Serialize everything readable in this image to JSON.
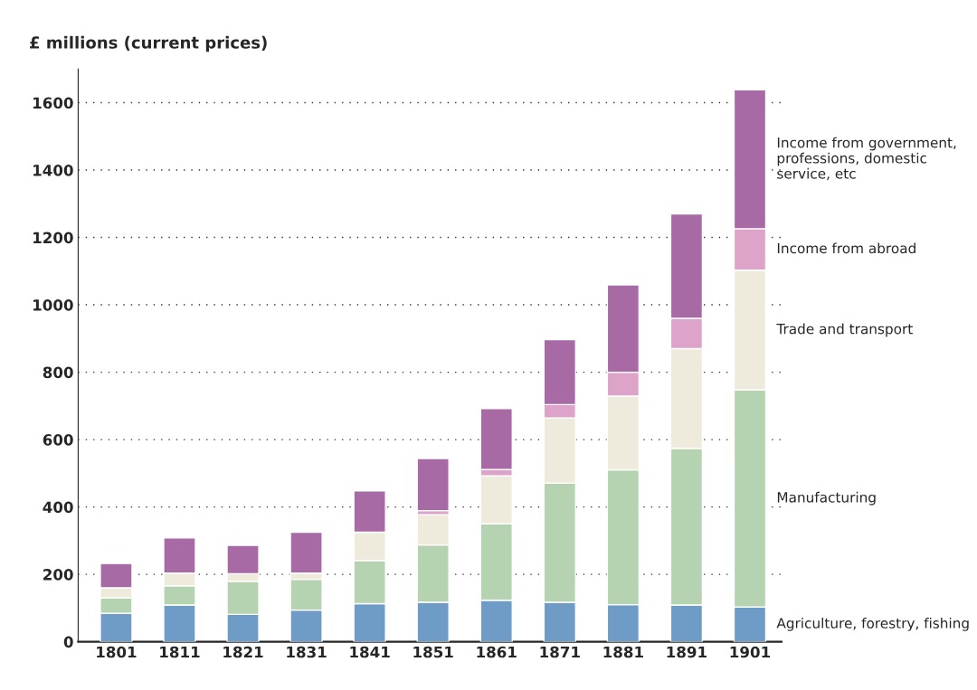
{
  "chart_data": {
    "type": "bar",
    "stacked": true,
    "ylabel": "£ millions (current prices)",
    "categories": [
      "1801",
      "1811",
      "1821",
      "1831",
      "1841",
      "1851",
      "1861",
      "1871",
      "1881",
      "1891",
      "1901"
    ],
    "series": [
      {
        "name": "Agriculture, forestry, fishing",
        "color": "#6f9cc6",
        "values": [
          84,
          109,
          81,
          94,
          113,
          117,
          123,
          117,
          110,
          109,
          103
        ]
      },
      {
        "name": "Manufacturing",
        "color": "#b5d3b0",
        "values": [
          46,
          57,
          98,
          91,
          128,
          170,
          227,
          354,
          400,
          465,
          644
        ]
      },
      {
        "name": "Trade and transport",
        "color": "#eeeadc",
        "values": [
          30,
          38,
          23,
          19,
          84,
          90,
          142,
          193,
          219,
          296,
          356
        ]
      },
      {
        "name": "Income from abroad",
        "color": "#dda3c8",
        "values": [
          0,
          0,
          0,
          0,
          0,
          12,
          19,
          40,
          71,
          90,
          123
        ]
      },
      {
        "name": "Income from government, professions, domestic service, etc",
        "color": "#a86aa5",
        "values": [
          72,
          104,
          84,
          121,
          123,
          155,
          181,
          193,
          259,
          310,
          412
        ]
      }
    ],
    "ylim": [
      0,
      1700
    ],
    "yticks": [
      0,
      200,
      400,
      600,
      800,
      1000,
      1200,
      1400,
      1600
    ],
    "grid": "y",
    "legend": false
  }
}
